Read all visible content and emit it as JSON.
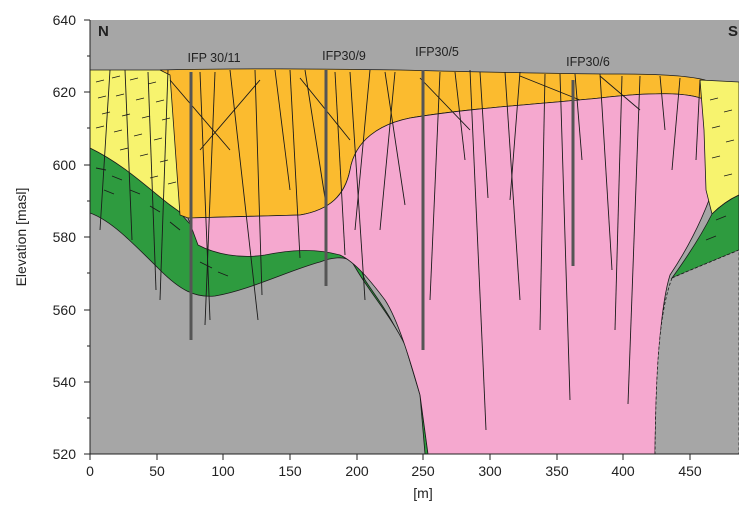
{
  "figure": {
    "direction_left": "N",
    "direction_right": "S",
    "x_axis_label": "[m]",
    "y_axis_label": "Elevation [masl]",
    "x_ticks": [
      "0",
      "50",
      "100",
      "150",
      "200",
      "250",
      "300",
      "350",
      "400",
      "450"
    ],
    "y_ticks": [
      "640",
      "620",
      "600",
      "580",
      "560",
      "540",
      "520"
    ],
    "well_labels": [
      "IFP 30/11",
      "IFP30/9",
      "IFP30/5",
      "IFP30/6"
    ]
  },
  "chart_data": {
    "type": "cross-section",
    "x_label": "[m]",
    "y_label": "Elevation [masl]",
    "xlim": [
      0,
      490
    ],
    "ylim": [
      520,
      640
    ],
    "x_tick_values": [
      0,
      50,
      100,
      150,
      200,
      250,
      300,
      350,
      400,
      450
    ],
    "y_tick_values": [
      520,
      540,
      560,
      580,
      600,
      620,
      640
    ],
    "wells": [
      {
        "name": "IFP 30/11",
        "x": 77,
        "top": 627,
        "bottom": 553
      },
      {
        "name": "IFP30/9",
        "x": 177,
        "top": 628,
        "bottom": 567
      },
      {
        "name": "IFP30/5",
        "x": 250,
        "top": 629,
        "bottom": 550
      },
      {
        "name": "IFP30/6",
        "x": 361,
        "top": 624,
        "bottom": 573
      }
    ],
    "colors": {
      "sediment_upper": "#f7f36e",
      "sediment_lower": "#fbbb2f",
      "intrusion": "#f5a8cf",
      "green_unit": "#2e9b3f",
      "bedrock": "#a6a6a6"
    }
  }
}
